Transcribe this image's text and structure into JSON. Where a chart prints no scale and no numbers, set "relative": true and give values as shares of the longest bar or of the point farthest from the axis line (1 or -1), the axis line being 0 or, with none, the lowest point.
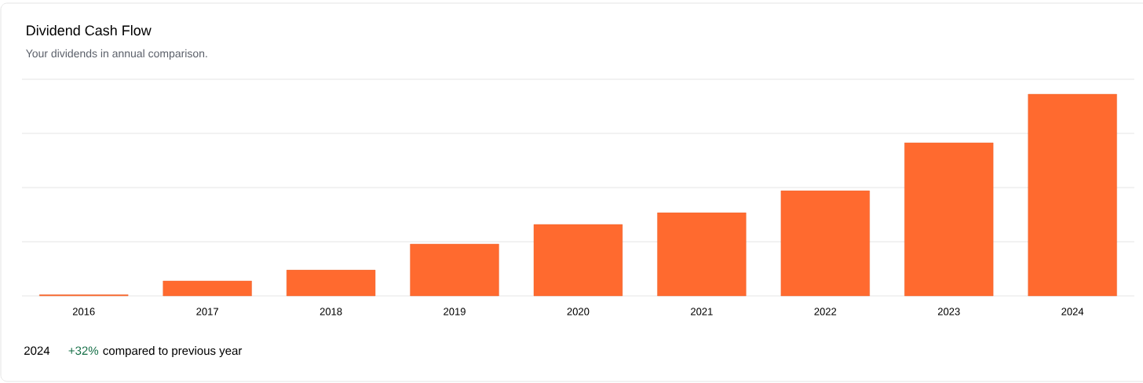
{
  "chart_data": {
    "type": "bar",
    "title": "Dividend Cash Flow",
    "subtitle": "Your dividends in annual comparison.",
    "categories": [
      "2016",
      "2017",
      "2018",
      "2019",
      "2020",
      "2021",
      "2022",
      "2023",
      "2024"
    ],
    "values": [
      0.006,
      0.074,
      0.128,
      0.257,
      0.354,
      0.412,
      0.521,
      0.759,
      1
    ],
    "color": "#ff6a2f",
    "relative": true,
    "grid": "y",
    "annotations": [
      "2024",
      "+32%",
      "compared to previous year"
    ]
  }
}
